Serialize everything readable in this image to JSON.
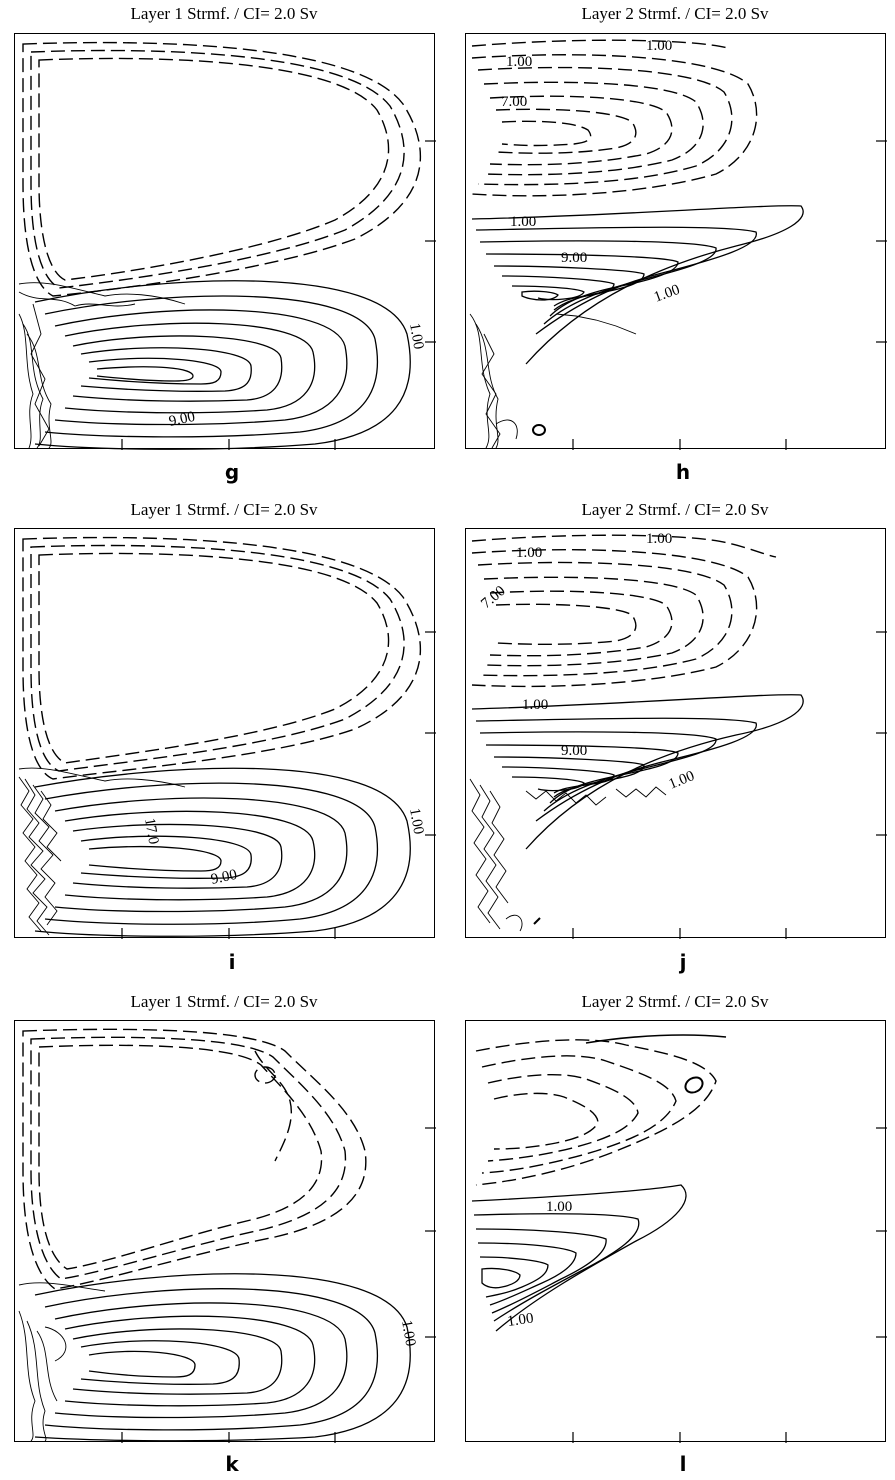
{
  "panels": [
    {
      "id": "g",
      "title": "Layer 1 Strmf. / CI= 2.0 Sv",
      "letter": "g",
      "labels": [
        "1.00",
        "9.00",
        "1.00"
      ]
    },
    {
      "id": "h",
      "title": "Layer 2 Strmf. / CI= 2.0 Sv",
      "letter": "h",
      "labels": [
        "1.00",
        "1.00",
        "7.00",
        "1.00",
        "9.00",
        "1.00"
      ]
    },
    {
      "id": "i",
      "title": "Layer 1 Strmf. / CI= 2.0 Sv",
      "letter": "i",
      "labels": [
        "1.00",
        "17.0",
        "9.00"
      ]
    },
    {
      "id": "j",
      "title": "Layer 2 Strmf. / CI= 2.0 Sv",
      "letter": "j",
      "labels": [
        "1.00",
        "1.00",
        "7.00",
        "1.00",
        "9.00",
        "1.00"
      ]
    },
    {
      "id": "k",
      "title": "Layer 1 Strmf. / CI= 2.0 Sv",
      "letter": "k",
      "labels": [
        "1.00"
      ]
    },
    {
      "id": "l",
      "title": "Layer 2 Strmf. / CI= 2.0 Sv",
      "letter": "l",
      "labels": [
        "1.00",
        "1.00"
      ]
    }
  ]
}
